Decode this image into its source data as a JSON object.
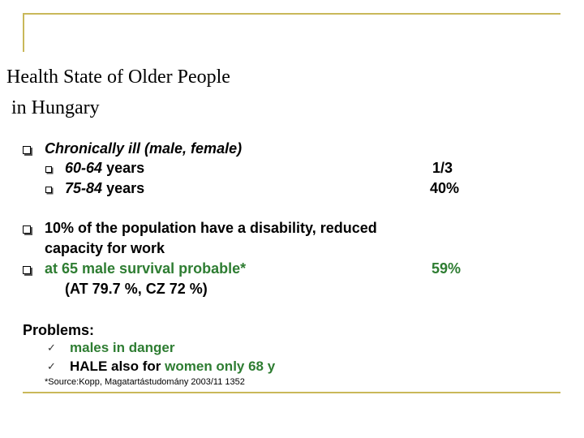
{
  "slide": {
    "title_line1": "Health State of Older People",
    "title_line2": "in Hungary",
    "bullets": {
      "chronic_label": "Chronically ill (male, female)",
      "age1_range": "60-64",
      "age1_unit": "years",
      "age1_value": "1/3",
      "age2_range": "75-84",
      "age2_unit": "years",
      "age2_value": "40%",
      "disability_line1": "10% of the population have a disability, reduced",
      "disability_line2": "capacity for work",
      "survival_label": "at 65 male survival probable*",
      "survival_value": "59%",
      "survival_compare": "(AT  79.7 %, CZ 72 %)"
    },
    "problems": {
      "heading": "Problems:",
      "item1": "males in danger",
      "item2_part1": "HALE also for",
      "item2_part2": "women only 68 y"
    },
    "source": "*Source:Kopp, Magatartástudomány 2003/11 1352"
  },
  "colors": {
    "accent_rule": "#c9b85a",
    "green_text": "#2e7d32"
  },
  "icons": {
    "bullet": "hollow-square-icon",
    "check": "checkmark-icon"
  }
}
